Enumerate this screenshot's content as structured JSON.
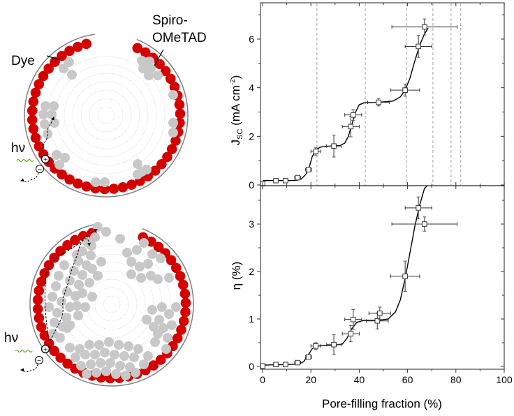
{
  "diagrams": {
    "labels": {
      "dye": "Dye",
      "spiro_line1": "Spiro-",
      "spiro_line2": "OMeTAD",
      "hv_top": "hν",
      "hv_bottom": "hν",
      "plus": "+",
      "minus": "−"
    },
    "colors": {
      "dye": "#d40000",
      "spiro": "#c8c8c8",
      "pore_wall": "#808080",
      "photon": "#6aa32a"
    }
  },
  "chart_data": [
    {
      "type": "scatter",
      "panel": "top",
      "title": "",
      "xlabel": "Pore-filling fraction (%)",
      "ylabel": "J_SC (mA cm^-2)",
      "ylabel_main": "J",
      "ylabel_sub": "SC",
      "ylabel_rest": " (mA cm",
      "ylabel_sup": "-2",
      "ylabel_close": ")",
      "xlim": [
        0,
        100
      ],
      "ylim": [
        0,
        7.2
      ],
      "yticks": [
        0,
        2,
        4,
        6
      ],
      "ytick_labels": [
        "0",
        "2",
        "4",
        "6"
      ],
      "vlines": [
        22.5,
        42.5,
        59.5,
        70.5,
        78,
        82
      ],
      "points": [
        {
          "x": 0,
          "y": 0.05,
          "xerr": 0.3,
          "yerr": 0.05
        },
        {
          "x": 5.5,
          "y": 0.18,
          "xerr": 0.5,
          "yerr": 0.03
        },
        {
          "x": 9.5,
          "y": 0.18,
          "xerr": 0.5,
          "yerr": 0.03
        },
        {
          "x": 14.5,
          "y": 0.3,
          "xerr": 1.2,
          "yerr": 0.05
        },
        {
          "x": 19,
          "y": 0.63,
          "xerr": 1.2,
          "yerr": 0.05
        },
        {
          "x": 22,
          "y": 1.38,
          "xerr": 2,
          "yerr": 0.15
        },
        {
          "x": 29.5,
          "y": 1.6,
          "xerr": 3,
          "yerr": 0.45
        },
        {
          "x": 36.5,
          "y": 2.4,
          "xerr": 3.5,
          "yerr": 0.42
        },
        {
          "x": 37.5,
          "y": 2.88,
          "xerr": 3.5,
          "yerr": 0.22
        },
        {
          "x": 48,
          "y": 3.4,
          "xerr": 4.5,
          "yerr": 0.15
        },
        {
          "x": 59,
          "y": 3.9,
          "xerr": 6,
          "yerr": 0.25
        },
        {
          "x": 64.5,
          "y": 5.7,
          "xerr": 5.5,
          "yerr": 0.45
        },
        {
          "x": 67,
          "y": 6.5,
          "xerr": 13.5,
          "yerr": 0.33
        }
      ],
      "fit_curve": [
        [
          0,
          0.18
        ],
        [
          10,
          0.18
        ],
        [
          14,
          0.19
        ],
        [
          16,
          0.24
        ],
        [
          18,
          0.45
        ],
        [
          19.5,
          0.8
        ],
        [
          20.5,
          1.15
        ],
        [
          22,
          1.45
        ],
        [
          24,
          1.56
        ],
        [
          28,
          1.6
        ],
        [
          32,
          1.62
        ],
        [
          34,
          1.72
        ],
        [
          35.5,
          2.0
        ],
        [
          37,
          2.5
        ],
        [
          38.5,
          3.0
        ],
        [
          40,
          3.3
        ],
        [
          42,
          3.38
        ],
        [
          48,
          3.4
        ],
        [
          54,
          3.45
        ],
        [
          57,
          3.62
        ],
        [
          59,
          3.9
        ],
        [
          61,
          4.4
        ],
        [
          63,
          5.1
        ],
        [
          65,
          5.75
        ],
        [
          67,
          6.2
        ],
        [
          68.5,
          6.45
        ]
      ]
    },
    {
      "type": "scatter",
      "panel": "bottom",
      "title": "",
      "xlabel": "Pore-filling fraction (%)",
      "ylabel": "η (%)",
      "xlim": [
        0,
        100
      ],
      "ylim": [
        0,
        3.8
      ],
      "xticks": [
        0,
        20,
        40,
        60,
        80,
        100
      ],
      "xtick_labels": [
        "0",
        "20",
        "40",
        "60",
        "80",
        "100"
      ],
      "yticks": [
        0,
        1,
        2,
        3
      ],
      "ytick_labels": [
        "0",
        "1",
        "2",
        "3"
      ],
      "points": [
        {
          "x": 0,
          "y": 0.01,
          "xerr": 0.3,
          "yerr": 0.02
        },
        {
          "x": 5.5,
          "y": 0.04,
          "xerr": 0.5,
          "yerr": 0.02
        },
        {
          "x": 9.5,
          "y": 0.04,
          "xerr": 0.5,
          "yerr": 0.02
        },
        {
          "x": 14.5,
          "y": 0.08,
          "xerr": 1.2,
          "yerr": 0.03
        },
        {
          "x": 19,
          "y": 0.2,
          "xerr": 1.2,
          "yerr": 0.04
        },
        {
          "x": 22,
          "y": 0.43,
          "xerr": 2,
          "yerr": 0.07
        },
        {
          "x": 29.5,
          "y": 0.46,
          "xerr": 3,
          "yerr": 0.21
        },
        {
          "x": 36.5,
          "y": 0.69,
          "xerr": 3.5,
          "yerr": 0.17
        },
        {
          "x": 37.5,
          "y": 0.99,
          "xerr": 3.5,
          "yerr": 0.21
        },
        {
          "x": 47.5,
          "y": 0.96,
          "xerr": 4.5,
          "yerr": 0.17
        },
        {
          "x": 48.5,
          "y": 1.12,
          "xerr": 4.5,
          "yerr": 0.13
        },
        {
          "x": 59,
          "y": 1.9,
          "xerr": 6,
          "yerr": 0.32
        },
        {
          "x": 64.5,
          "y": 3.34,
          "xerr": 5.5,
          "yerr": 0.23
        },
        {
          "x": 67,
          "y": 3.0,
          "xerr": 13.5,
          "yerr": 0.15
        }
      ],
      "fit_curve": [
        [
          0,
          0.03
        ],
        [
          10,
          0.04
        ],
        [
          15,
          0.05
        ],
        [
          17,
          0.1
        ],
        [
          19,
          0.25
        ],
        [
          20.5,
          0.37
        ],
        [
          22,
          0.43
        ],
        [
          25,
          0.44
        ],
        [
          30,
          0.45
        ],
        [
          33,
          0.47
        ],
        [
          35,
          0.6
        ],
        [
          37,
          0.8
        ],
        [
          39,
          0.93
        ],
        [
          42,
          0.97
        ],
        [
          48,
          0.97
        ],
        [
          52,
          1.0
        ],
        [
          55,
          1.15
        ],
        [
          57,
          1.4
        ],
        [
          59,
          1.85
        ],
        [
          61,
          2.4
        ],
        [
          63,
          2.95
        ],
        [
          65,
          3.4
        ],
        [
          67,
          3.75
        ],
        [
          68,
          3.8
        ]
      ]
    }
  ]
}
